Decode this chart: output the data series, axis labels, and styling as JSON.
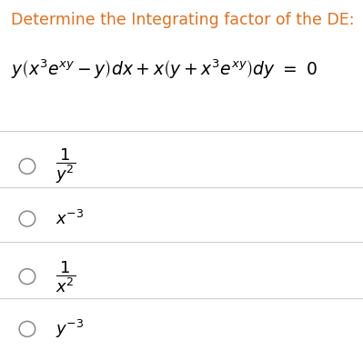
{
  "title": "Determine the Integrating factor of the DE:",
  "title_color": "#e07020",
  "eq_color": "#000000",
  "option_color": "#000000",
  "bg_color": "#ffffff",
  "title_fontsize": 12.5,
  "eq_fontsize": 13.5,
  "option_fontsize": 13,
  "figsize": [
    3.99,
    3.85
  ],
  "dpi": 100,
  "divider_color": "#cccccc",
  "circle_color": "#888888",
  "circle_size": 0.022
}
